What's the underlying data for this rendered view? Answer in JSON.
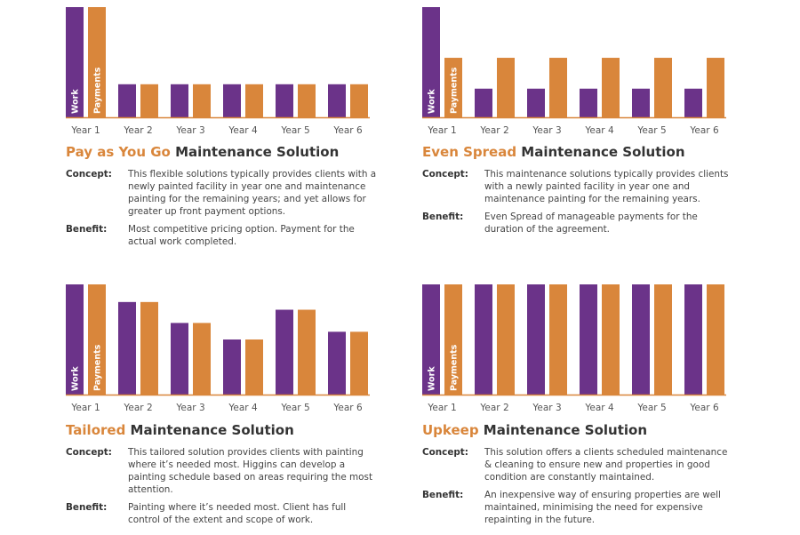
{
  "colors": {
    "work": "#6b3389",
    "payments": "#d9863b",
    "axis": "#d9863b",
    "title_accent": "#d9863b"
  },
  "legend_labels": {
    "work": "Work",
    "payments": "Payments"
  },
  "chart_data": [
    {
      "type": "bar",
      "categories": [
        "Year 1",
        "Year 2",
        "Year 3",
        "Year 4",
        "Year 5",
        "Year 6"
      ],
      "series": [
        {
          "name": "Work",
          "values": [
            100,
            30,
            30,
            30,
            30,
            30
          ]
        },
        {
          "name": "Payments",
          "values": [
            100,
            30,
            30,
            30,
            30,
            30
          ]
        }
      ],
      "ylim": [
        0,
        100
      ],
      "title_accent": "Pay as You Go",
      "title_rest": " Maintenance Solution",
      "concept_label": "Concept:",
      "concept_text": "This flexible solutions typically provides clients with a newly painted facility in year one and maintenance painting for the remaining years; and yet allows for greater up front payment options.",
      "benefit_label": "Benefit:",
      "benefit_text": "Most competitive pricing option. Payment for the actual work completed."
    },
    {
      "type": "bar",
      "categories": [
        "Year 1",
        "Year 2",
        "Year 3",
        "Year 4",
        "Year 5",
        "Year 6"
      ],
      "series": [
        {
          "name": "Work",
          "values": [
            100,
            26,
            26,
            26,
            26,
            26
          ]
        },
        {
          "name": "Payments",
          "values": [
            54,
            54,
            54,
            54,
            54,
            54
          ]
        }
      ],
      "ylim": [
        0,
        100
      ],
      "title_accent": "Even Spread",
      "title_rest": " Maintenance Solution",
      "concept_label": "Concept:",
      "concept_text": "This maintenance solutions typically provides clients with a newly painted facility in year one and maintenance painting for the remaining years.",
      "benefit_label": "Benefit:",
      "benefit_text": "Even Spread of manageable payments for the duration of the agreement."
    },
    {
      "type": "bar",
      "categories": [
        "Year 1",
        "Year 2",
        "Year 3",
        "Year 4",
        "Year 5",
        "Year 6"
      ],
      "series": [
        {
          "name": "Work",
          "values": [
            100,
            84,
            65,
            50,
            77,
            57
          ]
        },
        {
          "name": "Payments",
          "values": [
            100,
            84,
            65,
            50,
            77,
            57
          ]
        }
      ],
      "ylim": [
        0,
        100
      ],
      "title_accent": "Tailored",
      "title_rest": " Maintenance Solution",
      "concept_label": "Concept:",
      "concept_text": "This tailored solution provides clients with painting where it’s needed most. Higgins can develop a painting schedule based on areas requiring the most attention.",
      "benefit_label": "Benefit:",
      "benefit_text": "Painting where it’s needed most. Client has full control of the extent and scope of work."
    },
    {
      "type": "bar",
      "categories": [
        "Year 1",
        "Year 2",
        "Year 3",
        "Year 4",
        "Year 5",
        "Year 6"
      ],
      "series": [
        {
          "name": "Work",
          "values": [
            100,
            100,
            100,
            100,
            100,
            100
          ]
        },
        {
          "name": "Payments",
          "values": [
            100,
            100,
            100,
            100,
            100,
            100
          ]
        }
      ],
      "ylim": [
        0,
        100
      ],
      "title_accent": "Upkeep",
      "title_rest": " Maintenance Solution",
      "concept_label": "Concept:",
      "concept_text": "This solution offers a clients scheduled maintenance & cleaning to ensure new and properties in good condition are constantly maintained.",
      "benefit_label": "Benefit:",
      "benefit_text": "An inexpensive way of ensuring properties are well maintained, minimising the need for expensive repainting in the future."
    }
  ]
}
